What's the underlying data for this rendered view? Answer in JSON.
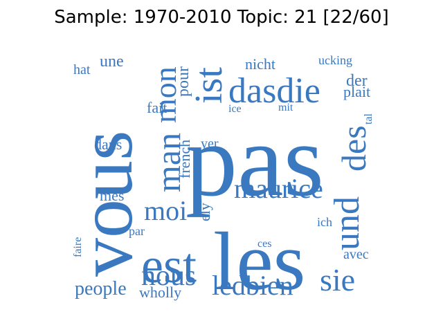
{
  "title": "Sample: 1970-2010 Topic: 21 [22/60]",
  "word_color": "#3a78c0",
  "words": [
    {
      "text": "pas",
      "rotated": false
    },
    {
      "text": "vous",
      "rotated": true
    },
    {
      "text": "les",
      "rotated": false
    },
    {
      "text": "est",
      "rotated": false
    },
    {
      "text": "dasdie",
      "rotated": false
    },
    {
      "text": "ist",
      "rotated": true
    },
    {
      "text": "und",
      "rotated": true
    },
    {
      "text": "des",
      "rotated": true
    },
    {
      "text": "man",
      "rotated": true
    },
    {
      "text": "mon",
      "rotated": true
    },
    {
      "text": "maurice",
      "rotated": false
    },
    {
      "text": "moi",
      "rotated": false
    },
    {
      "text": "nous",
      "rotated": false
    },
    {
      "text": "ledbien",
      "rotated": false
    },
    {
      "text": "sie",
      "rotated": false
    },
    {
      "text": "une",
      "rotated": false
    },
    {
      "text": "hat",
      "rotated": false
    },
    {
      "text": "nicht",
      "rotated": false
    },
    {
      "text": "ucking",
      "rotated": false
    },
    {
      "text": "der",
      "rotated": false
    },
    {
      "text": "plait",
      "rotated": false
    },
    {
      "text": "pour",
      "rotated": true
    },
    {
      "text": "fait",
      "rotated": false
    },
    {
      "text": "ice",
      "rotated": false
    },
    {
      "text": "mit",
      "rotated": false
    },
    {
      "text": "tal",
      "rotated": true
    },
    {
      "text": "dans",
      "rotated": false
    },
    {
      "text": "french",
      "rotated": true
    },
    {
      "text": "yer",
      "rotated": false
    },
    {
      "text": "mes",
      "rotated": false
    },
    {
      "text": "ely",
      "rotated": true
    },
    {
      "text": "ich",
      "rotated": false
    },
    {
      "text": "par",
      "rotated": false
    },
    {
      "text": "faire",
      "rotated": true
    },
    {
      "text": "ces",
      "rotated": false
    },
    {
      "text": "avec",
      "rotated": false
    },
    {
      "text": "people",
      "rotated": false
    },
    {
      "text": "wholly",
      "rotated": false
    }
  ]
}
